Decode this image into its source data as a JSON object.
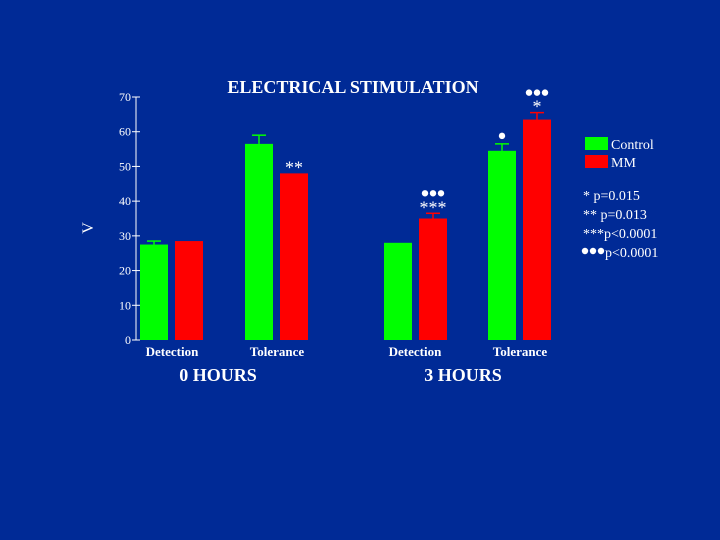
{
  "chart_data": {
    "type": "bar",
    "title": "ELECTRICAL STIMULATION",
    "ylabel": "V",
    "ylim": [
      0,
      70
    ],
    "yticks": [
      0,
      10,
      20,
      30,
      40,
      50,
      60,
      70
    ],
    "grid": false,
    "legend_position": "right",
    "groups": [
      {
        "name": "0 HOURS",
        "categories": [
          "Detection",
          "Tolerance"
        ],
        "series": [
          {
            "name": "Control",
            "color": "#00ff00",
            "values": [
              27.5,
              56.5
            ],
            "errors": [
              1.0,
              2.5
            ]
          },
          {
            "name": "MM",
            "color": "#ff0000",
            "values": [
              28.5,
              48.0
            ],
            "errors": [
              0,
              0
            ]
          }
        ],
        "annotations": [
          {
            "category": "Tolerance",
            "series": "MM",
            "text": "**",
            "dots": 0
          }
        ]
      },
      {
        "name": "3 HOURS",
        "categories": [
          "Detection",
          "Tolerance"
        ],
        "series": [
          {
            "name": "Control",
            "color": "#00ff00",
            "values": [
              28.0,
              54.5
            ],
            "errors": [
              0,
              2.0
            ]
          },
          {
            "name": "MM",
            "color": "#ff0000",
            "values": [
              35.0,
              63.5
            ],
            "errors": [
              1.5,
              2.0
            ]
          }
        ],
        "annotations": [
          {
            "category": "Detection",
            "series": "MM",
            "text": "***",
            "dots": 3
          },
          {
            "category": "Tolerance",
            "series": "Control",
            "text": "",
            "dots": 1
          },
          {
            "category": "Tolerance",
            "series": "MM",
            "text": "*",
            "dots": 3
          }
        ]
      }
    ],
    "legend": [
      {
        "label": "Control",
        "color": "#00ff00"
      },
      {
        "label": "MM",
        "color": "#ff0000"
      }
    ],
    "stats_notes": [
      {
        "text": "* p=0.015",
        "dots": 0
      },
      {
        "text": "** p=0.013",
        "dots": 0
      },
      {
        "text": "***p<0.0001",
        "dots": 0
      },
      {
        "text": "p<0.0001",
        "dots": 3
      }
    ]
  }
}
